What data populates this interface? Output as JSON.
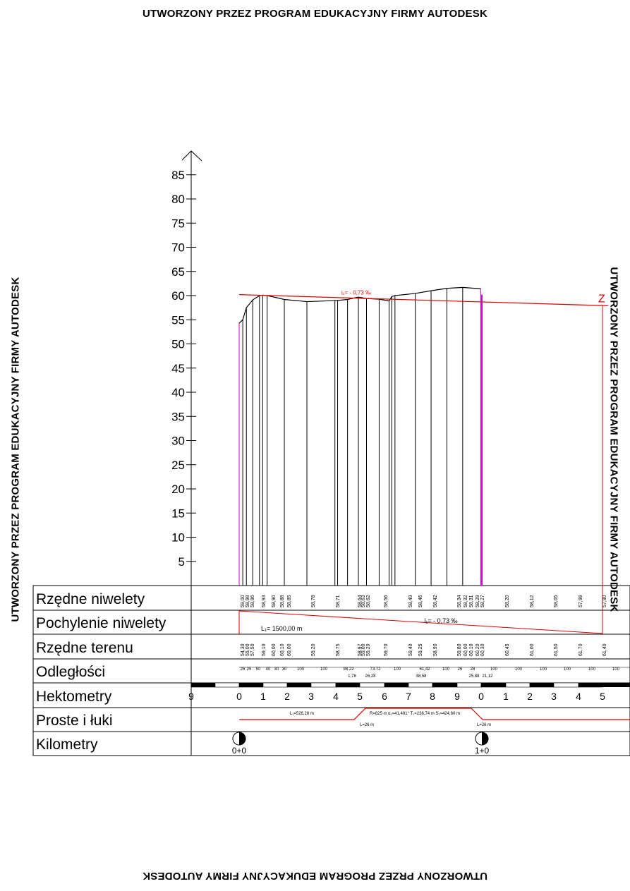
{
  "watermark": "UTWORZONY PRZEZ PROGRAM EDUKACYJNY FIRMY AUTODESK",
  "colors": {
    "red": "#e00000",
    "magenta": "#d000d0",
    "black": "#000000"
  },
  "chart_data": {
    "type": "line",
    "title": "",
    "ylim": [
      0,
      88
    ],
    "y_ticks": [
      "5",
      "10",
      "15",
      "20",
      "25",
      "30",
      "35",
      "40",
      "45",
      "50",
      "55",
      "60",
      "65",
      "70",
      "75",
      "80",
      "85"
    ],
    "terrain_x": [
      0,
      8,
      16,
      30,
      45,
      52,
      62,
      100,
      150,
      212,
      218,
      240,
      264,
      282,
      310,
      332,
      338,
      345,
      390,
      425,
      460,
      495,
      535
    ],
    "terrain_y": [
      54.3,
      55.0,
      57.5,
      59.1,
      60.0,
      60.1,
      60.0,
      59.2,
      58.75,
      58.97,
      59.0,
      59.2,
      59.7,
      59.4,
      59.25,
      58.9,
      59.8,
      60.0,
      60.45,
      61.0,
      61.5,
      61.7,
      61.4
    ],
    "grade_line": {
      "label": "i₁= - 0,73 ‰",
      "start": 60.2,
      "end": 57.9
    },
    "rows": {
      "labels": [
        "Rzędne niwelety",
        "Pochylenie niwelety",
        "Rzędne terenu",
        "Odległości",
        "Hektometry",
        "Proste i łuki",
        "Kilometry"
      ],
      "rzedne_niwelety": [
        "59,00",
        "58,98",
        "58,96",
        "58,93",
        "58,90",
        "58,88",
        "58,85",
        "58,78",
        "58,71",
        "58,64",
        "58,63",
        "58,62",
        "58,56",
        "58,49",
        "58,46",
        "58,42",
        "58,34",
        "58,32",
        "58,31",
        "58,29",
        "58,27",
        "58,20",
        "58,12",
        "58,05",
        "57,98",
        "57,90"
      ],
      "pochylenie": {
        "label": "i₁= - 0,73 ‰",
        "length": "L₁= 1500,00 m"
      },
      "rzedne_terenu": [
        "54,30",
        "55,00",
        "57,50",
        "59,10",
        "60,00",
        "60,10",
        "60,00",
        "59,20",
        "58,75",
        "58,97",
        "59,00",
        "59,20",
        "59,70",
        "59,40",
        "59,25",
        "58,90",
        "59,80",
        "60,00",
        "60,10",
        "60,20",
        "60,30",
        "60,45",
        "61,00",
        "61,50",
        "61,70",
        "61,40"
      ],
      "odleglosci_top": [
        "26",
        "25",
        "50",
        "40",
        "30",
        "30",
        "100",
        "100",
        "98,22",
        "73,72",
        "100",
        "61,42",
        "100",
        "26",
        "28",
        "100",
        "100",
        "100",
        "100",
        "100",
        "100"
      ],
      "odleglosci_bottom": [
        "1,78",
        "26,28",
        "38,58",
        "25,88",
        "21,12"
      ],
      "hektometry": [
        "9",
        "0",
        "1",
        "2",
        "3",
        "4",
        "5",
        "6",
        "7",
        "8",
        "9",
        "0",
        "1",
        "2",
        "3",
        "4",
        "5"
      ],
      "luki": {
        "l1": "L₁=526,28 m",
        "arc": "R=825 m  α₁=41,491° T₁=236,74 m S₁=424,60 m",
        "l_a": "L=26 m",
        "l_b": "L=26 m"
      },
      "kilometry": [
        "0+0",
        "1+0"
      ]
    }
  }
}
